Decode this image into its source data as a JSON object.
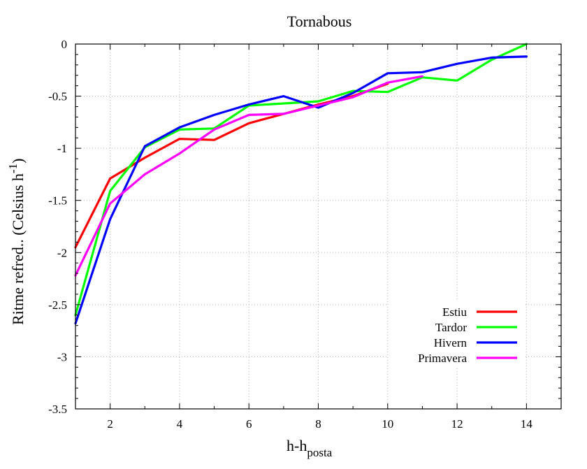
{
  "chart_data": {
    "type": "line",
    "title": "Tornabous",
    "xlabel": "h-h",
    "xlabel_sub": "posta",
    "ylabel_main": "Ritme refred.. (Celsius h",
    "ylabel_sup": "-1",
    "ylabel_close": ")",
    "xlim": [
      1,
      15
    ],
    "ylim": [
      -3.5,
      0
    ],
    "xticks": [
      2,
      4,
      6,
      8,
      10,
      12,
      14
    ],
    "yticks": [
      0,
      -0.5,
      -1,
      -1.5,
      -2,
      -2.5,
      -3,
      -3.5
    ],
    "xtick_labels": [
      "2",
      "4",
      "6",
      "8",
      "10",
      "12",
      "14"
    ],
    "ytick_labels": [
      "0",
      "-0.5",
      "-1",
      "-1.5",
      "-2",
      "-2.5",
      "-3",
      "-3.5"
    ],
    "grid": true,
    "legend_position": "bottom-right",
    "series": [
      {
        "name": "Estiu",
        "color": "#ff0000",
        "x": [
          1,
          2,
          3,
          4,
          5,
          6,
          7,
          8,
          9,
          10
        ],
        "y": [
          -1.95,
          -1.29,
          -1.09,
          -0.91,
          -0.92,
          -0.76,
          -0.67,
          -0.58,
          -0.5,
          -0.38
        ]
      },
      {
        "name": "Tardor",
        "color": "#00ff00",
        "x": [
          1,
          2,
          3,
          4,
          5,
          6,
          7,
          8,
          9,
          10,
          11,
          12,
          13,
          14
        ],
        "y": [
          -2.6,
          -1.41,
          -0.99,
          -0.82,
          -0.81,
          -0.59,
          -0.57,
          -0.55,
          -0.45,
          -0.46,
          -0.32,
          -0.35,
          -0.15,
          0.02
        ]
      },
      {
        "name": "Hivern",
        "color": "#0000ff",
        "x": [
          1,
          2,
          3,
          4,
          5,
          6,
          7,
          8,
          9,
          10,
          11,
          12,
          13,
          14
        ],
        "y": [
          -2.68,
          -1.68,
          -0.98,
          -0.8,
          -0.68,
          -0.58,
          -0.5,
          -0.61,
          -0.47,
          -0.28,
          -0.27,
          -0.19,
          -0.13,
          -0.12
        ]
      },
      {
        "name": "Primavera",
        "color": "#ff00ff",
        "x": [
          1,
          2,
          3,
          4,
          5,
          6,
          7,
          8,
          9,
          10,
          11
        ],
        "y": [
          -2.22,
          -1.53,
          -1.25,
          -1.05,
          -0.82,
          -0.68,
          -0.67,
          -0.59,
          -0.51,
          -0.37,
          -0.31
        ]
      }
    ]
  }
}
